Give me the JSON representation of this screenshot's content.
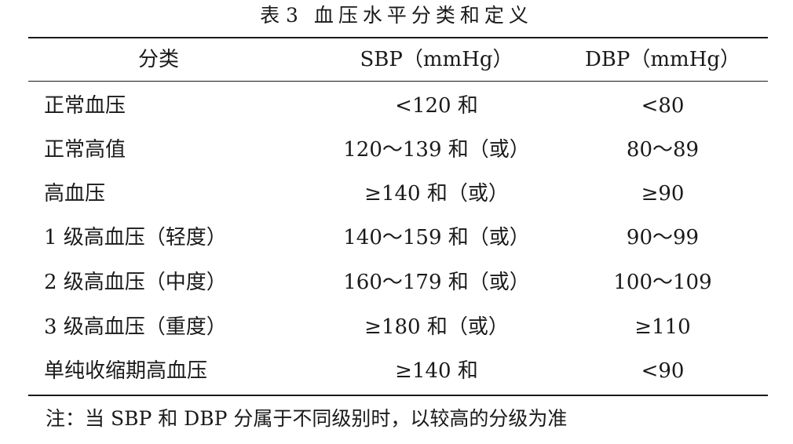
{
  "table": {
    "title_num": "表 3",
    "title_text": "血压水平分类和定义",
    "headers": [
      "分类",
      "SBP（mmHg）",
      "DBP（mmHg）"
    ],
    "rows": [
      [
        "正常血压",
        "<120 和",
        "<80"
      ],
      [
        "正常高值",
        "120～139 和（或）",
        "80～89"
      ],
      [
        "高血压",
        "≥140 和（或）",
        "≥90"
      ],
      [
        "1 级高血压（轻度）",
        "140～159 和（或）",
        "90～99"
      ],
      [
        "2 级高血压（中度）",
        "160～179 和（或）",
        "100～109"
      ],
      [
        "3 级高血压（重度）",
        "≥180 和（或）",
        "≥110"
      ],
      [
        "单纯收缩期高血压",
        "≥140 和",
        "<90"
      ]
    ],
    "note": "注：当 SBP 和 DBP 分属于不同级别时，以较高的分级为准"
  }
}
